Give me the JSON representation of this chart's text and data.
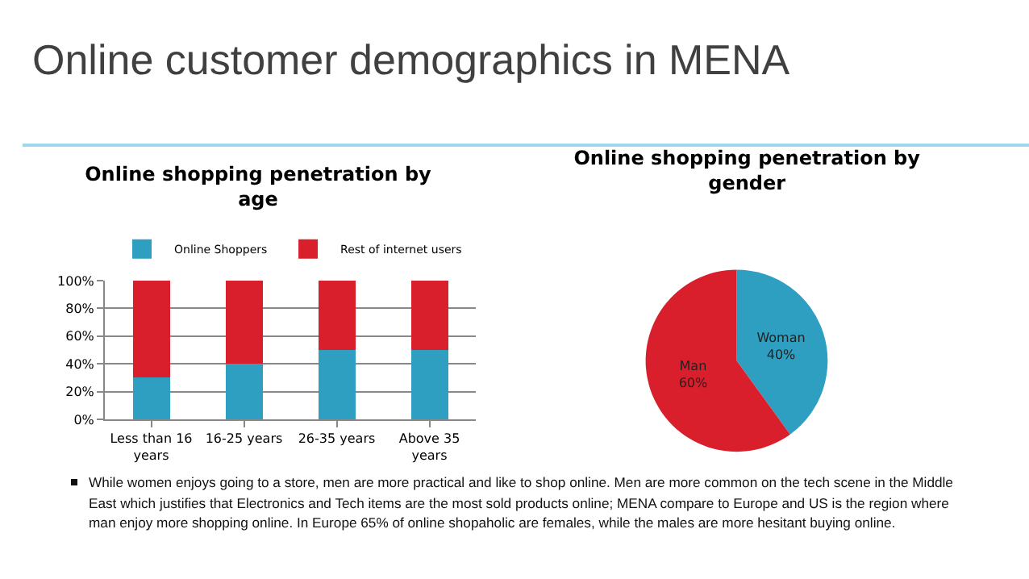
{
  "chart_data": [
    {
      "type": "bar",
      "title": "Online shopping penetration by age",
      "stacked": true,
      "categories": [
        "Less than 16 years",
        "16-25 years",
        "26-35 years",
        "Above 35 years"
      ],
      "series": [
        {
          "name": "Online Shoppers",
          "color": "#2e9fc1",
          "values": [
            30,
            40,
            50,
            50
          ]
        },
        {
          "name": "Rest of internet users",
          "color": "#d91f2b",
          "values": [
            70,
            60,
            50,
            50
          ]
        }
      ],
      "ylim": [
        0,
        100
      ],
      "yticks": [
        {
          "value": 0,
          "label": "0%"
        },
        {
          "value": 20,
          "label": "20%"
        },
        {
          "value": 40,
          "label": "40%"
        },
        {
          "value": 60,
          "label": "60%"
        },
        {
          "value": 80,
          "label": "80%"
        },
        {
          "value": 100,
          "label": "100%"
        }
      ],
      "grid": "y",
      "legend": "top",
      "annotations": [
        "Online customer demographics in MENA"
      ]
    },
    {
      "type": "pie",
      "title": "Online shopping penetration by gender",
      "categories": [
        "Woman",
        "Man"
      ],
      "values": [
        40,
        60
      ],
      "colors": [
        "#2e9fc1",
        "#d91f2b"
      ],
      "value_labels": [
        "40%",
        "60%"
      ],
      "annotations": [
        "While women enjoys going to a store, men are more practical and like to shop online. Men are more common on the tech scene in the Middle East which justifies that Electronics and Tech items are the most sold products online; MENA compare to Europe and US is the region where man enjoy more shopping online. In Europe 65% of online shopaholic are females, while the males are more hesitant buying online."
      ]
    }
  ]
}
